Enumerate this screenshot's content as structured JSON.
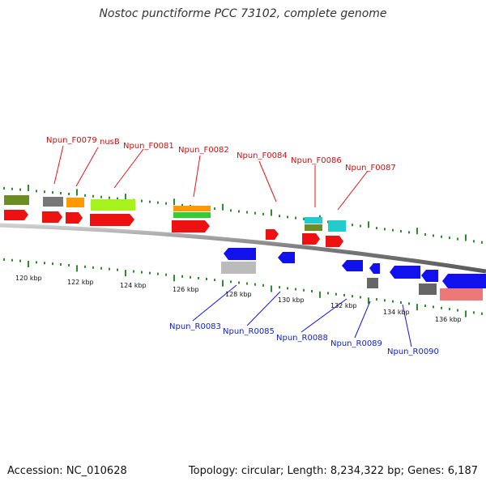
{
  "title": "Nostoc punctiforme PCC 73102, complete genome",
  "accession_label": "Accession: NC_010628",
  "stats_label": "Topology: circular; Length: 8,234,322 bp; Genes: 6,187",
  "colors": {
    "backbone": "#8a8a8a",
    "tick": "#2e8b2e",
    "forward_label": "#cc1111",
    "reverse_label": "#1122cc"
  },
  "kbp_ticks": [
    "120 kbp",
    "122 kbp",
    "124 kbp",
    "126 kbp",
    "128 kbp",
    "130 kbp",
    "132 kbp",
    "134 kbp",
    "136 kbp"
  ],
  "forward_genes": [
    {
      "label": "Npun_F0079"
    },
    {
      "label": "nusB"
    },
    {
      "label": "Npun_F0081"
    },
    {
      "label": "Npun_F0082"
    },
    {
      "label": "Npun_F0084"
    },
    {
      "label": "Npun_F0086"
    },
    {
      "label": "Npun_F0087"
    }
  ],
  "reverse_genes": [
    {
      "label": "Npun_R0083"
    },
    {
      "label": "Npun_R0085"
    },
    {
      "label": "Npun_R0088"
    },
    {
      "label": "Npun_R0089"
    },
    {
      "label": "Npun_R0090"
    }
  ]
}
